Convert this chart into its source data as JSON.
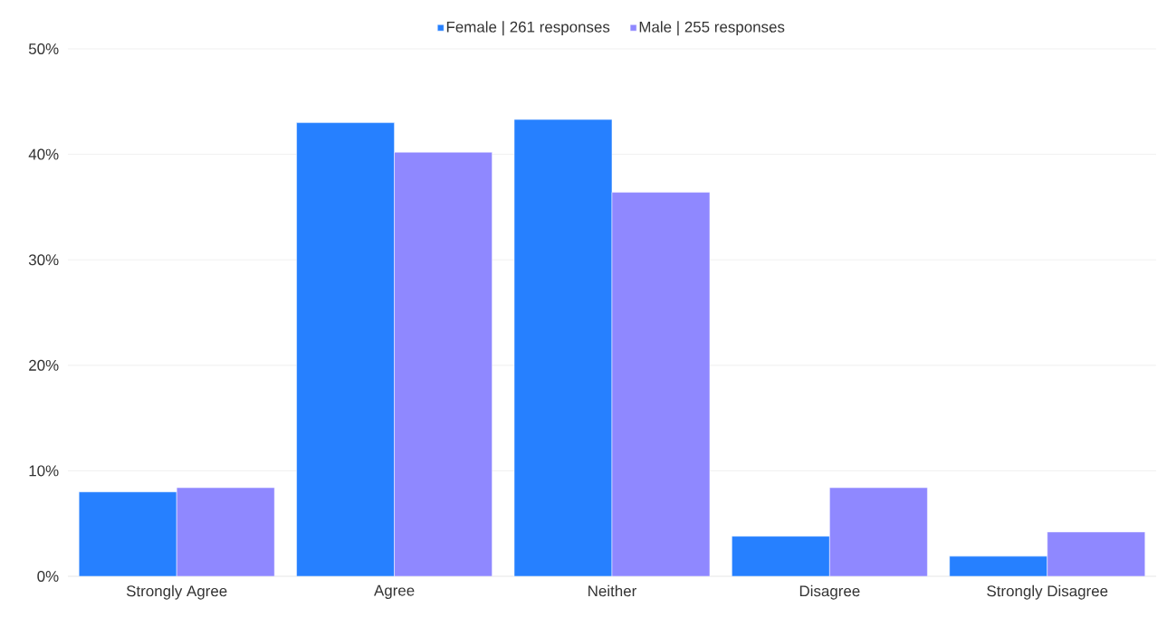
{
  "chart_data": {
    "type": "bar",
    "categories": [
      "Strongly Agree",
      "Agree",
      "Neither",
      "Disagree",
      "Strongly Disagree"
    ],
    "series": [
      {
        "name": "Female | 261 responses",
        "color": "#2680ff",
        "values": [
          8.0,
          43.0,
          43.3,
          3.8,
          1.9
        ]
      },
      {
        "name": "Male | 255 responses",
        "color": "#8f88ff",
        "values": [
          8.4,
          40.2,
          36.4,
          8.4,
          4.2
        ]
      }
    ],
    "ylim": [
      0,
      50
    ],
    "yticks": [
      {
        "value": 0,
        "label": "0%"
      },
      {
        "value": 10,
        "label": "10%"
      },
      {
        "value": 20,
        "label": "20%"
      },
      {
        "value": 30,
        "label": "30%"
      },
      {
        "value": 40,
        "label": "40%"
      },
      {
        "value": 50,
        "label": "50%"
      }
    ],
    "grid": "y",
    "legend": "top"
  }
}
